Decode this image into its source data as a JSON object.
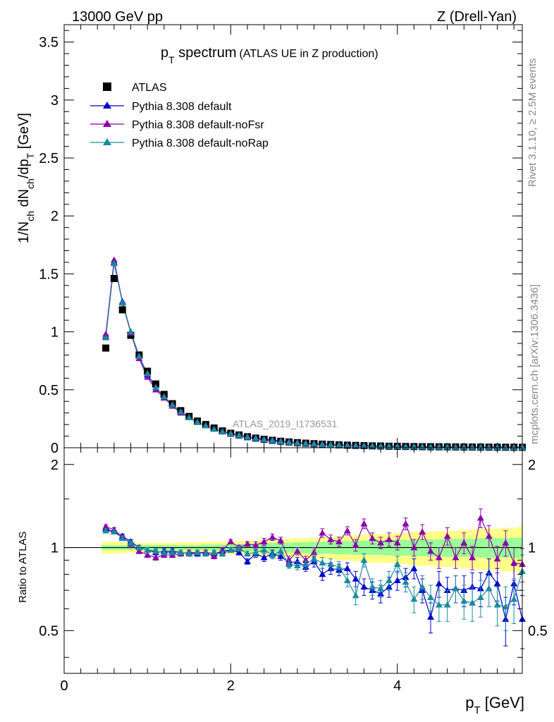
{
  "header": {
    "left": "13000 GeV pp",
    "right": "Z (Drell-Yan)"
  },
  "side": {
    "rivet": "Rivet 3.1.10, ≥ 2.5M events",
    "mcplots": "mcplots.cern.ch [arXiv:1306.3436]"
  },
  "colors": {
    "data": "#000000",
    "default": "#0000cc",
    "noFsr": "#8800aa",
    "noRap": "#1a8aa0",
    "band_inner": "#99ff99",
    "band_outer": "#ffff88"
  },
  "chart_data": [
    {
      "type": "scatter",
      "title": {
        "main_p": "p",
        "main_sub": "T",
        "main_rest": " spectrum",
        "sub": "(ATLAS UE in Z production)"
      },
      "ylabel": {
        "p1": "1/N",
        "s1": "ch",
        "p2": " dN",
        "s2": "ch",
        "p3": "/dp",
        "s3": "T",
        "p4": " [GeV]"
      },
      "watermark": "ATLAS_2019_I1736531",
      "xlim": [
        0,
        5.5
      ],
      "ylim": [
        0,
        3.65
      ],
      "grid": false,
      "legend_position": "top-left",
      "yticks": [
        "0",
        "0.5",
        "1",
        "1.5",
        "2",
        "2.5",
        "3",
        "3.5"
      ],
      "x": [
        0.5,
        0.6,
        0.7,
        0.8,
        0.9,
        1.0,
        1.1,
        1.2,
        1.3,
        1.4,
        1.5,
        1.6,
        1.7,
        1.8,
        1.9,
        2.0,
        2.1,
        2.2,
        2.3,
        2.4,
        2.5,
        2.6,
        2.7,
        2.8,
        2.9,
        3.0,
        3.1,
        3.2,
        3.3,
        3.4,
        3.5,
        3.6,
        3.7,
        3.8,
        3.9,
        4.0,
        4.1,
        4.2,
        4.3,
        4.4,
        4.5,
        4.6,
        4.7,
        4.8,
        4.9,
        5.0,
        5.1,
        5.2,
        5.3,
        5.4,
        5.5
      ],
      "series": [
        {
          "name": "ATLAS",
          "key": "data",
          "values": [
            0.86,
            1.46,
            1.19,
            0.97,
            0.8,
            0.66,
            0.55,
            0.46,
            0.38,
            0.32,
            0.27,
            0.23,
            0.2,
            0.17,
            0.145,
            0.125,
            0.11,
            0.095,
            0.083,
            0.073,
            0.064,
            0.056,
            0.05,
            0.044,
            0.039,
            0.035,
            0.031,
            0.028,
            0.025,
            0.022,
            0.02,
            0.018,
            0.016,
            0.015,
            0.013,
            0.012,
            0.011,
            0.01,
            0.009,
            0.0085,
            0.008,
            0.0075,
            0.007,
            0.0065,
            0.006,
            0.0055,
            0.005,
            0.0047,
            0.0044,
            0.0041,
            0.0038
          ]
        },
        {
          "name": "Pythia 8.308 default",
          "key": "default",
          "values": [
            0.96,
            1.6,
            1.26,
            1.0,
            0.79,
            0.63,
            0.52,
            0.44,
            0.37,
            0.31,
            0.26,
            0.22,
            0.19,
            0.16,
            0.14,
            0.12,
            0.105,
            0.09,
            0.078,
            0.068,
            0.059,
            0.052,
            0.046,
            0.04,
            0.035,
            0.031,
            0.027,
            0.024,
            0.021,
            0.019,
            0.017,
            0.015,
            0.013,
            0.012,
            0.011,
            0.01,
            0.009,
            0.008,
            0.0072,
            0.0065,
            0.006,
            0.0055,
            0.005,
            0.0046,
            0.0042,
            0.0038,
            0.0035,
            0.0032,
            0.0029,
            0.0027,
            0.0025
          ]
        },
        {
          "name": "Pythia 8.308 default-noFsr",
          "key": "noFsr",
          "values": [
            0.98,
            1.62,
            1.25,
            0.99,
            0.77,
            0.61,
            0.5,
            0.43,
            0.36,
            0.3,
            0.26,
            0.22,
            0.19,
            0.16,
            0.14,
            0.125,
            0.11,
            0.095,
            0.085,
            0.075,
            0.066,
            0.058,
            0.051,
            0.045,
            0.04,
            0.036,
            0.032,
            0.029,
            0.026,
            0.023,
            0.021,
            0.019,
            0.017,
            0.016,
            0.014,
            0.013,
            0.012,
            0.011,
            0.01,
            0.0092,
            0.0085,
            0.008,
            0.0074,
            0.0069,
            0.0064,
            0.006,
            0.0056,
            0.0052,
            0.0049,
            0.0046,
            0.0043
          ]
        },
        {
          "name": "Pythia 8.308 default-noRap",
          "key": "noRap",
          "values": [
            0.95,
            1.59,
            1.25,
            1.0,
            0.79,
            0.64,
            0.52,
            0.44,
            0.37,
            0.31,
            0.26,
            0.22,
            0.19,
            0.16,
            0.14,
            0.122,
            0.107,
            0.093,
            0.081,
            0.071,
            0.062,
            0.054,
            0.048,
            0.042,
            0.037,
            0.033,
            0.029,
            0.026,
            0.023,
            0.02,
            0.018,
            0.016,
            0.015,
            0.013,
            0.012,
            0.011,
            0.01,
            0.009,
            0.0082,
            0.0075,
            0.0069,
            0.0063,
            0.0058,
            0.0053,
            0.0049,
            0.0045,
            0.0042,
            0.0039,
            0.0036,
            0.0033,
            0.0031
          ]
        }
      ]
    },
    {
      "type": "scatter",
      "ylabel": "Ratio to ATLAS",
      "xlabel": {
        "p": "p",
        "s": "T",
        "rest": " [GeV]"
      },
      "xlim": [
        0,
        5.5
      ],
      "ylim": [
        0.35,
        2.3
      ],
      "xticks": [
        "0",
        "2",
        "4"
      ],
      "yticks": [
        "0.5",
        "1",
        "2"
      ],
      "grid": false,
      "reference_line": 1,
      "band_inner": [
        0.02,
        0.02,
        0.02,
        0.02,
        0.02,
        0.02,
        0.02,
        0.02,
        0.02,
        0.02,
        0.02,
        0.02,
        0.025,
        0.025,
        0.025,
        0.03,
        0.03,
        0.03,
        0.035,
        0.035,
        0.04,
        0.04,
        0.04,
        0.045,
        0.045,
        0.05,
        0.05,
        0.05,
        0.055,
        0.055,
        0.06,
        0.06,
        0.06,
        0.06,
        0.065,
        0.065,
        0.065,
        0.07,
        0.07,
        0.07,
        0.07,
        0.075,
        0.075,
        0.075,
        0.075,
        0.08,
        0.08,
        0.08,
        0.08,
        0.085,
        0.085
      ],
      "band_outer": [
        0.05,
        0.05,
        0.045,
        0.04,
        0.04,
        0.04,
        0.04,
        0.04,
        0.04,
        0.045,
        0.045,
        0.045,
        0.05,
        0.05,
        0.05,
        0.055,
        0.055,
        0.06,
        0.06,
        0.065,
        0.07,
        0.07,
        0.075,
        0.08,
        0.08,
        0.085,
        0.09,
        0.09,
        0.1,
        0.1,
        0.11,
        0.11,
        0.12,
        0.12,
        0.12,
        0.13,
        0.13,
        0.14,
        0.14,
        0.14,
        0.15,
        0.15,
        0.15,
        0.16,
        0.16,
        0.17,
        0.17,
        0.17,
        0.18,
        0.18,
        0.19
      ],
      "series": [
        {
          "name": "Pythia 8.308 default",
          "key": "default",
          "values": [
            1.17,
            1.14,
            1.1,
            1.05,
            1.0,
            0.98,
            0.96,
            0.97,
            0.97,
            0.96,
            0.95,
            0.95,
            0.96,
            0.95,
            0.97,
            0.98,
            0.96,
            0.89,
            0.95,
            0.92,
            0.95,
            0.93,
            0.88,
            0.89,
            0.85,
            0.89,
            0.8,
            0.84,
            0.83,
            0.84,
            0.77,
            0.72,
            0.7,
            0.68,
            0.72,
            0.76,
            0.78,
            0.84,
            0.7,
            0.56,
            0.74,
            0.7,
            0.71,
            0.7,
            0.72,
            0.71,
            0.81,
            0.74,
            0.55,
            0.74,
            0.55
          ],
          "errors": [
            0.02,
            0.02,
            0.02,
            0.02,
            0.02,
            0.02,
            0.02,
            0.02,
            0.02,
            0.02,
            0.02,
            0.02,
            0.02,
            0.02,
            0.02,
            0.02,
            0.02,
            0.02,
            0.03,
            0.03,
            0.03,
            0.03,
            0.03,
            0.03,
            0.03,
            0.04,
            0.04,
            0.04,
            0.04,
            0.04,
            0.05,
            0.05,
            0.05,
            0.05,
            0.06,
            0.06,
            0.06,
            0.07,
            0.07,
            0.07,
            0.08,
            0.08,
            0.08,
            0.09,
            0.09,
            0.1,
            0.1,
            0.1,
            0.11,
            0.12,
            0.12
          ]
        },
        {
          "name": "Pythia 8.308 default-noFsr",
          "key": "noFsr",
          "values": [
            1.19,
            1.16,
            1.09,
            1.03,
            0.97,
            0.94,
            0.92,
            0.94,
            0.94,
            0.95,
            0.96,
            0.96,
            0.96,
            0.93,
            0.98,
            1.05,
            1.0,
            1.03,
            1.02,
            1.05,
            1.09,
            1.06,
            0.9,
            0.97,
            0.9,
            0.96,
            1.13,
            1.07,
            1.05,
            1.15,
            1.02,
            1.22,
            1.08,
            1.04,
            1.07,
            1.04,
            1.22,
            1.0,
            1.14,
            0.97,
            0.92,
            1.1,
            0.92,
            1.04,
            0.92,
            1.28,
            1.1,
            0.91,
            1.04,
            0.88,
            0.87
          ],
          "errors": [
            0.02,
            0.02,
            0.02,
            0.02,
            0.02,
            0.02,
            0.02,
            0.02,
            0.02,
            0.02,
            0.02,
            0.02,
            0.02,
            0.02,
            0.02,
            0.02,
            0.02,
            0.02,
            0.03,
            0.03,
            0.03,
            0.03,
            0.03,
            0.03,
            0.03,
            0.04,
            0.04,
            0.04,
            0.04,
            0.04,
            0.05,
            0.05,
            0.05,
            0.05,
            0.06,
            0.06,
            0.06,
            0.07,
            0.07,
            0.07,
            0.08,
            0.08,
            0.08,
            0.09,
            0.09,
            0.1,
            0.1,
            0.1,
            0.11,
            0.12,
            0.12
          ]
        },
        {
          "name": "Pythia 8.308 default-noRap",
          "key": "noRap",
          "values": [
            1.15,
            1.14,
            1.08,
            1.04,
            1.0,
            0.98,
            0.97,
            0.96,
            0.96,
            0.96,
            0.95,
            0.96,
            0.95,
            0.96,
            0.95,
            0.98,
            0.99,
            0.95,
            0.96,
            0.98,
            0.94,
            0.97,
            0.87,
            0.86,
            0.87,
            0.91,
            0.88,
            0.87,
            0.85,
            0.76,
            0.67,
            0.9,
            0.72,
            0.71,
            0.76,
            0.87,
            0.75,
            0.65,
            0.72,
            0.66,
            0.62,
            0.62,
            0.71,
            0.64,
            0.63,
            0.66,
            0.71,
            0.62,
            0.61,
            0.65,
            0.82
          ],
          "errors": [
            0.02,
            0.02,
            0.02,
            0.02,
            0.02,
            0.02,
            0.02,
            0.02,
            0.02,
            0.02,
            0.02,
            0.02,
            0.02,
            0.02,
            0.02,
            0.02,
            0.02,
            0.02,
            0.03,
            0.03,
            0.03,
            0.03,
            0.03,
            0.03,
            0.03,
            0.04,
            0.04,
            0.04,
            0.04,
            0.04,
            0.05,
            0.05,
            0.05,
            0.05,
            0.06,
            0.06,
            0.06,
            0.07,
            0.07,
            0.07,
            0.08,
            0.08,
            0.08,
            0.09,
            0.09,
            0.1,
            0.1,
            0.1,
            0.11,
            0.12,
            0.12
          ]
        }
      ]
    }
  ]
}
